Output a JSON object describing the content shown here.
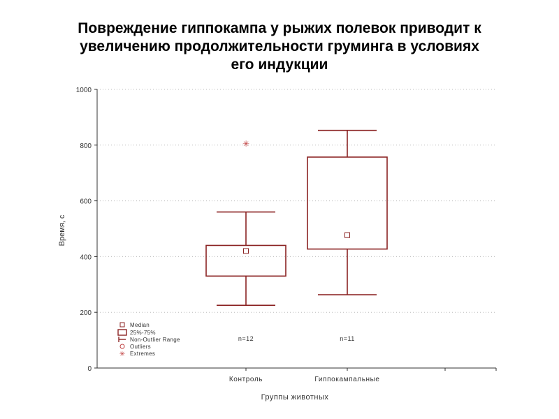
{
  "title_lines": [
    "Повреждение гиппокампа у рыжих полевок приводит к",
    "увеличению продолжительности груминга в условиях",
    "его индукции"
  ],
  "colors": {
    "box": "#8b2323",
    "axis": "#333333",
    "grid": "#bbbbbb",
    "text": "#333333",
    "extreme": "#c04040"
  },
  "chart_data": {
    "type": "boxplot",
    "title": "Повреждение гиппокампа у рыжих полевок приводит к увеличению продолжительности груминга в условиях его индукции",
    "xlabel": "Группы животных",
    "ylabel": "Время, с",
    "ylim": [
      0,
      1000
    ],
    "yticks": [
      0,
      200,
      400,
      600,
      800,
      1000
    ],
    "grid": true,
    "legend_position": "bottom-left",
    "categories": [
      "Контроль",
      "Гиппокампальные"
    ],
    "boxes": [
      {
        "category": "Контроль",
        "median": 420,
        "q1": 330,
        "q3": 440,
        "whisker_low": 225,
        "whisker_high": 560,
        "n_label": "n=12",
        "extremes": [
          805
        ]
      },
      {
        "category": "Гиппокампальные",
        "median": 477,
        "q1": 427,
        "q3": 757,
        "whisker_low": 263,
        "whisker_high": 853,
        "n_label": "n=11",
        "extremes": []
      }
    ],
    "legend": {
      "median": "Median",
      "box": "25%-75%",
      "range": "Non-Outlier Range",
      "outliers": "Outliers",
      "extremes": "Extremes"
    }
  }
}
